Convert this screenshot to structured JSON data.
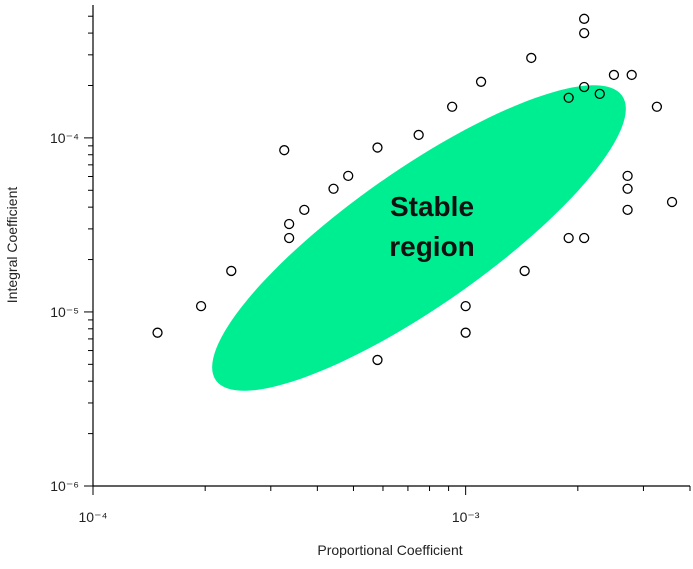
{
  "chart_data": {
    "type": "scatter",
    "xlabel": "Proportional Coefficient",
    "ylabel": "Integral Coefficient",
    "annotation": [
      "Stable",
      "region"
    ],
    "xscale": "log",
    "yscale": "log",
    "xlim": [
      0.0001,
      0.004
    ],
    "ylim": [
      1e-06,
      0.00058
    ],
    "xticks": [
      {
        "value": 0.0001,
        "label": "10⁻⁴"
      },
      {
        "value": 0.001,
        "label": "10⁻³"
      }
    ],
    "yticks": [
      {
        "value": 1e-06,
        "label": "10⁻⁶"
      },
      {
        "value": 1e-05,
        "label": "10⁻⁵"
      },
      {
        "value": 0.0001,
        "label": "10⁻⁴"
      }
    ],
    "xminorticks": [
      0.0002,
      0.0003,
      0.0004,
      0.0005,
      0.0006,
      0.0007,
      0.0008,
      0.0009,
      0.002,
      0.003,
      0.004
    ],
    "yminorticks": [
      2e-06,
      3e-06,
      4e-06,
      5e-06,
      6e-06,
      7e-06,
      8e-06,
      9e-06,
      2e-05,
      3e-05,
      4e-05,
      5e-05,
      6e-05,
      7e-05,
      8e-05,
      9e-05,
      0.0002,
      0.0003,
      0.0004,
      0.0005
    ],
    "region_color": "#00ee92",
    "marker_color": "#000000",
    "x": [
      0.000149,
      0.000195,
      0.000235,
      0.000326,
      0.000336,
      0.000336,
      0.000369,
      0.000442,
      0.000484,
      0.00058,
      0.00058,
      0.000748,
      0.00092,
      0.001,
      0.001,
      0.0011,
      0.00144,
      0.0015,
      0.00189,
      0.00189,
      0.00208,
      0.00208,
      0.00208,
      0.00208,
      0.00229,
      0.0025,
      0.00272,
      0.00272,
      0.00272,
      0.00279,
      0.00326,
      0.00358
    ],
    "values": [
      7.6e-06,
      1.08e-05,
      1.72e-05,
      8.5e-05,
      3.2e-05,
      2.66e-05,
      3.86e-05,
      5.1e-05,
      6.05e-05,
      5.3e-06,
      8.8e-05,
      0.000104,
      0.000151,
      1.08e-05,
      7.6e-06,
      0.00021,
      1.72e-05,
      0.000288,
      2.66e-05,
      0.00017,
      2.66e-05,
      0.000196,
      0.000483,
      0.0004,
      0.000179,
      0.00023,
      6.05e-05,
      5.1e-05,
      3.86e-05,
      0.00023,
      0.000151,
      4.28e-05
    ]
  }
}
